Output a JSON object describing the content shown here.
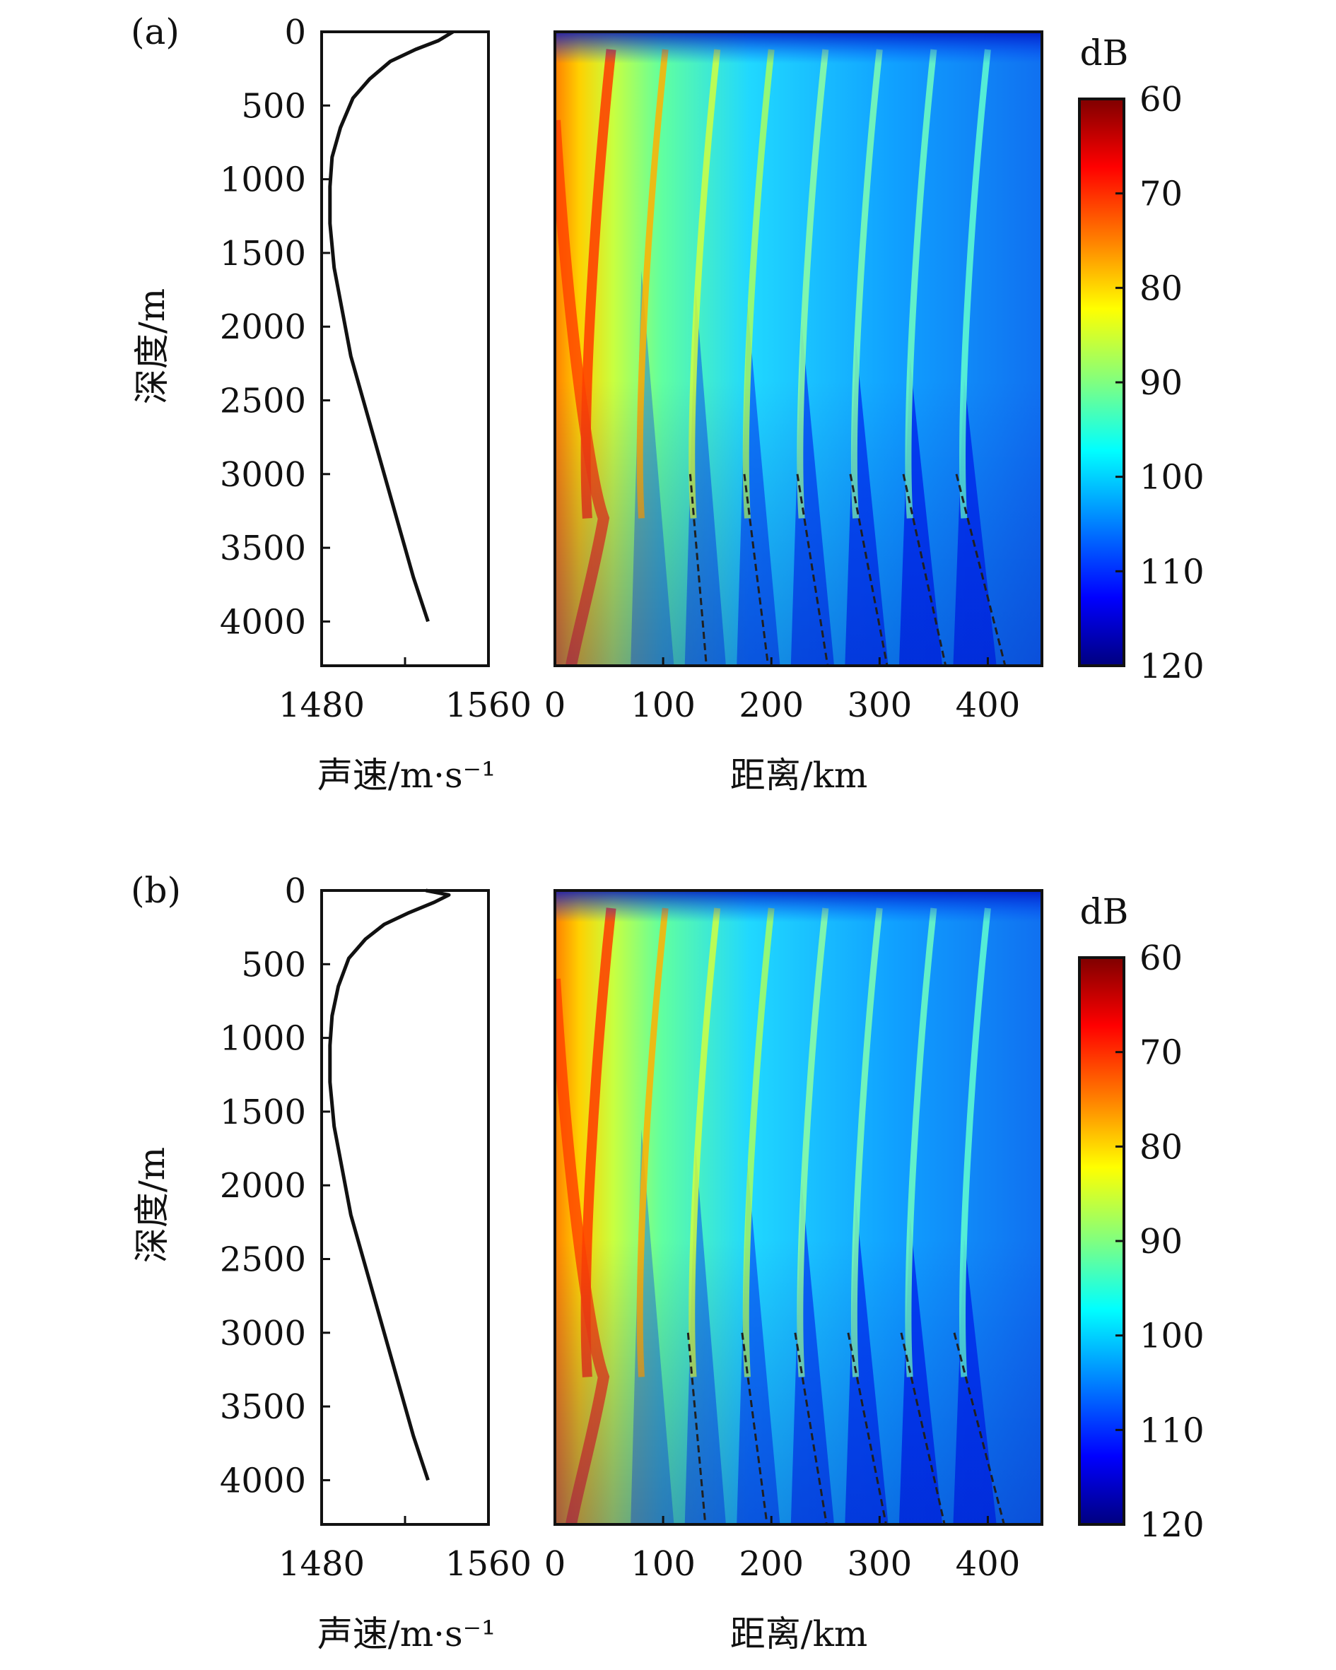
{
  "chart_data": [
    {
      "panel": "(a)",
      "subplots": [
        {
          "type": "line",
          "role": "sound-speed-profile",
          "xlabel": "声速/m·s⁻¹",
          "ylabel": "深度/m",
          "xlim": [
            1480,
            1560
          ],
          "ylim": [
            0,
            4300
          ],
          "y_reversed": true,
          "xticks": [
            "1480",
            "1560"
          ],
          "yticks": [
            "0",
            "500",
            "1000",
            "1500",
            "2000",
            "2500",
            "3000",
            "3500",
            "4000"
          ],
          "series": [
            {
              "name": "sound speed",
              "x": [
                1543,
                1536,
                1525,
                1513,
                1503,
                1495,
                1489,
                1485,
                1484,
                1484,
                1486,
                1490,
                1494,
                1500,
                1506,
                1512,
                1518,
                1524,
                1531
              ],
              "y": [
                0,
                60,
                120,
                200,
                320,
                450,
                650,
                850,
                1050,
                1300,
                1600,
                1900,
                2200,
                2500,
                2800,
                3100,
                3400,
                3700,
                4000
              ]
            }
          ]
        },
        {
          "type": "heatmap",
          "role": "transmission-loss",
          "xlabel": "距离/km",
          "xlim": [
            0,
            450
          ],
          "ylim": [
            0,
            4300
          ],
          "y_reversed": true,
          "xticks": [
            "0",
            "100",
            "200",
            "300",
            "400"
          ],
          "colorbar": {
            "label": "dB",
            "range": [
              60,
              120
            ],
            "ticks": [
              "60",
              "70",
              "80",
              "90",
              "100",
              "110",
              "120"
            ],
            "colormap": "jet-reversed"
          },
          "convergence_zone_peaks_km": [
            52,
            102,
            150,
            200,
            250,
            300,
            350,
            400
          ],
          "dashed_shadow_edges": [
            {
              "x": [
                125,
                140
              ],
              "y": [
                3000,
                4300
              ]
            },
            {
              "x": [
                175,
                197
              ],
              "y": [
                3000,
                4300
              ]
            },
            {
              "x": [
                224,
                252
              ],
              "y": [
                3000,
                4300
              ]
            },
            {
              "x": [
                273,
                307
              ],
              "y": [
                3000,
                4300
              ]
            },
            {
              "x": [
                322,
                361
              ],
              "y": [
                3000,
                4300
              ]
            },
            {
              "x": [
                371,
                416
              ],
              "y": [
                3000,
                4300
              ]
            }
          ]
        }
      ]
    },
    {
      "panel": "(b)",
      "subplots": [
        {
          "type": "line",
          "role": "sound-speed-profile",
          "xlabel": "声速/m·s⁻¹",
          "ylabel": "深度/m",
          "xlim": [
            1480,
            1560
          ],
          "ylim": [
            0,
            4300
          ],
          "y_reversed": true,
          "xticks": [
            "1480",
            "1560"
          ],
          "yticks": [
            "0",
            "500",
            "1000",
            "1500",
            "2000",
            "2500",
            "3000",
            "3500",
            "4000"
          ],
          "series": [
            {
              "name": "sound speed",
              "x": [
                1530,
                1541,
                1534,
                1522,
                1510,
                1501,
                1493,
                1488,
                1485,
                1484,
                1484,
                1486,
                1490,
                1494,
                1500,
                1506,
                1512,
                1518,
                1524,
                1531
              ],
              "y": [
                0,
                30,
                80,
                150,
                230,
                330,
                460,
                650,
                850,
                1050,
                1300,
                1600,
                1900,
                2200,
                2500,
                2800,
                3100,
                3400,
                3700,
                4000
              ]
            }
          ]
        },
        {
          "type": "heatmap",
          "role": "transmission-loss",
          "xlabel": "距离/km",
          "xlim": [
            0,
            450
          ],
          "ylim": [
            0,
            4300
          ],
          "y_reversed": true,
          "xticks": [
            "0",
            "100",
            "200",
            "300",
            "400"
          ],
          "colorbar": {
            "label": "dB",
            "range": [
              60,
              120
            ],
            "ticks": [
              "60",
              "70",
              "80",
              "90",
              "100",
              "110",
              "120"
            ],
            "colormap": "jet-reversed"
          },
          "convergence_zone_peaks_km": [
            52,
            102,
            150,
            200,
            250,
            300,
            350,
            400
          ],
          "dashed_shadow_edges": [
            {
              "x": [
                123,
                139
              ],
              "y": [
                3000,
                4300
              ]
            },
            {
              "x": [
                173,
                196
              ],
              "y": [
                3000,
                4300
              ]
            },
            {
              "x": [
                222,
                251
              ],
              "y": [
                3000,
                4300
              ]
            },
            {
              "x": [
                271,
                306
              ],
              "y": [
                3000,
                4300
              ]
            },
            {
              "x": [
                320,
                360
              ],
              "y": [
                3000,
                4300
              ]
            },
            {
              "x": [
                369,
                415
              ],
              "y": [
                3000,
                4300
              ]
            }
          ]
        }
      ]
    }
  ]
}
